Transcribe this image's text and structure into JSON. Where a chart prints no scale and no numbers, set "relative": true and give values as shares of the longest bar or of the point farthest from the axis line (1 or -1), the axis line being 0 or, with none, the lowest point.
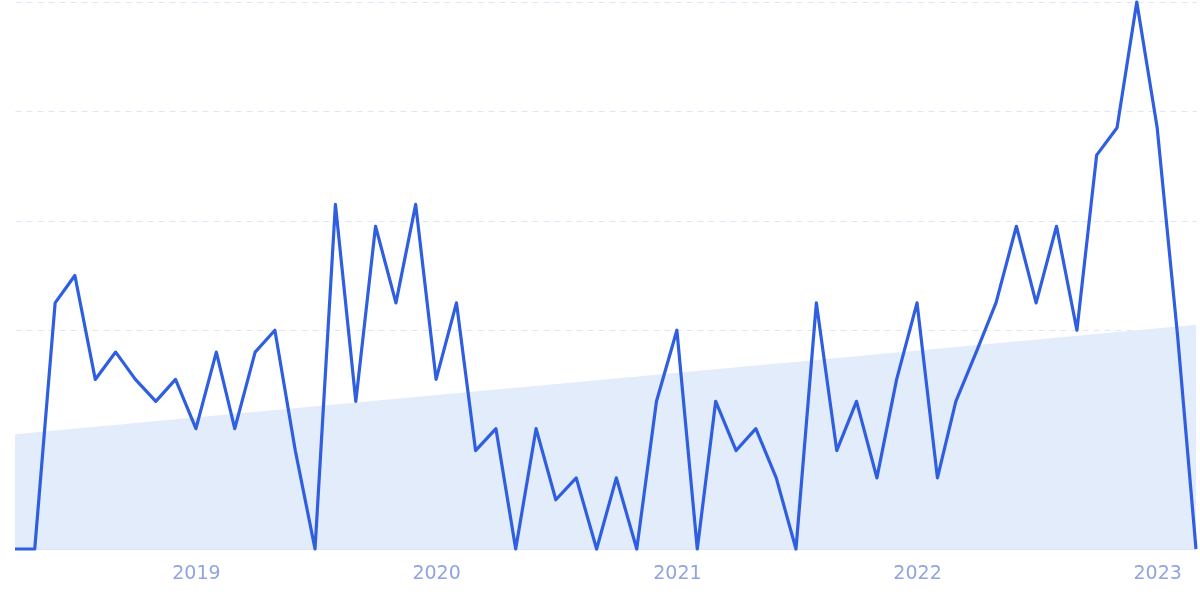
{
  "chart_data": {
    "type": "line",
    "relative": true,
    "x": [
      "2018-04",
      "2018-05",
      "2018-06",
      "2018-07",
      "2018-08",
      "2018-09",
      "2018-10",
      "2018-11",
      "2018-12",
      "2019-01",
      "2019-02",
      "2019-03",
      "2019-04",
      "2019-05",
      "2019-06",
      "2019-07",
      "2019-08",
      "2019-09",
      "2019-10",
      "2019-11",
      "2019-12",
      "2020-01",
      "2020-02",
      "2020-03",
      "2020-04",
      "2020-05",
      "2020-06",
      "2020-07",
      "2020-08",
      "2020-09",
      "2020-10",
      "2020-11",
      "2020-12",
      "2021-01",
      "2021-02",
      "2021-03",
      "2021-04",
      "2021-05",
      "2021-06",
      "2021-07",
      "2021-08",
      "2021-09",
      "2021-10",
      "2021-11",
      "2021-12",
      "2022-01",
      "2022-02",
      "2022-03",
      "2022-04",
      "2022-05",
      "2022-06",
      "2022-07",
      "2022-08",
      "2022-09",
      "2022-10",
      "2022-11",
      "2022-12",
      "2023-01",
      "2023-02",
      "2023-03"
    ],
    "series": [
      {
        "type": "area",
        "color": "#e3ecfb",
        "x": [
          "2018-04",
          "2023-03"
        ],
        "values": [
          0.21,
          0.41
        ]
      },
      {
        "type": "line",
        "color": "#2f5fe0",
        "values": [
          0,
          0,
          0.45,
          0.5,
          0.31,
          0.36,
          0.31,
          0.27,
          0.31,
          0.22,
          0.36,
          0.22,
          0.36,
          0.4,
          0.18,
          0,
          0.63,
          0.27,
          0.59,
          0.45,
          0.63,
          0.31,
          0.45,
          0.18,
          0.22,
          0,
          0.22,
          0.09,
          0.13,
          0,
          0.13,
          0,
          0.27,
          0.4,
          0,
          0.27,
          0.18,
          0.22,
          0.13,
          0,
          0.45,
          0.18,
          0.27,
          0.13,
          0.31,
          0.45,
          0.13,
          0.27,
          0.36,
          0.45,
          0.59,
          0.45,
          0.59,
          0.4,
          0.72,
          0.77,
          1,
          0.77,
          0.39,
          0
        ]
      }
    ],
    "xlim": [
      "2018-04",
      "2023-03"
    ],
    "xticks": [
      "2019",
      "2020",
      "2021",
      "2022",
      "2023"
    ],
    "grid": "y",
    "tick_labels": "x",
    "marker": "none",
    "line_style": "solid"
  }
}
